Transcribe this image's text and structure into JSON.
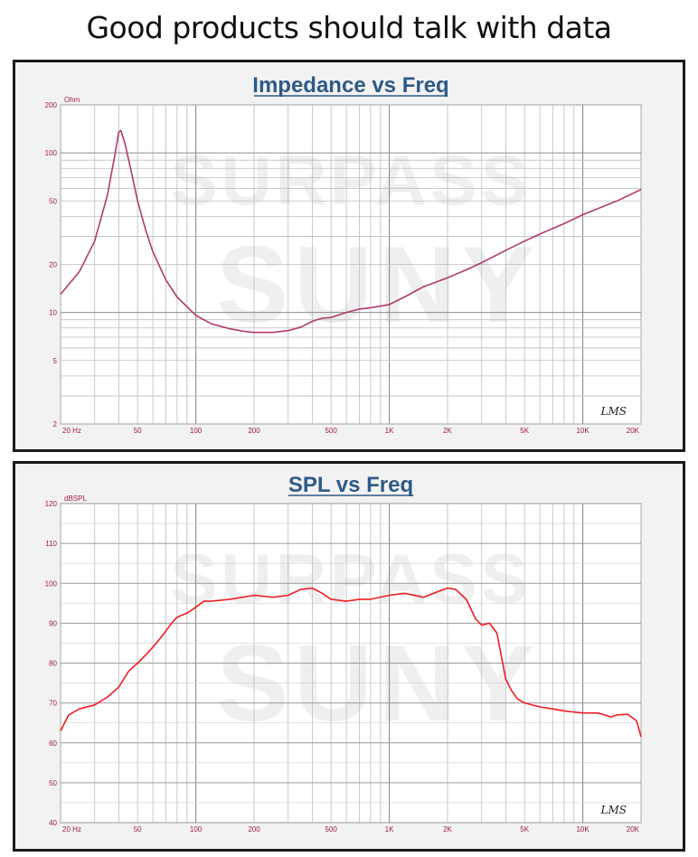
{
  "banner": {
    "title": "Good products should talk with data"
  },
  "watermark": {
    "line1": "SURPASS",
    "line2": "SUNY"
  },
  "chart_data": [
    {
      "type": "line",
      "title": "Impedance vs Freq",
      "ylabel": "Ohm",
      "xscale": "log",
      "yscale": "log",
      "xlim": [
        20,
        20000
      ],
      "ylim": [
        2,
        200
      ],
      "grid": true,
      "x_tick_labels": [
        {
          "value": 20,
          "label": "20 Hz"
        },
        {
          "value": 50,
          "label": "50"
        },
        {
          "value": 100,
          "label": "100"
        },
        {
          "value": 200,
          "label": "200"
        },
        {
          "value": 500,
          "label": "500"
        },
        {
          "value": 1000,
          "label": "1K"
        },
        {
          "value": 2000,
          "label": "2K"
        },
        {
          "value": 5000,
          "label": "5K"
        },
        {
          "value": 10000,
          "label": "10K"
        },
        {
          "value": 20000,
          "label": "20K"
        }
      ],
      "y_tick_labels": [
        {
          "value": 200,
          "label": "200"
        },
        {
          "value": 100,
          "label": "100"
        },
        {
          "value": 50,
          "label": "50"
        },
        {
          "value": 20,
          "label": "20"
        },
        {
          "value": 10,
          "label": "10"
        },
        {
          "value": 5,
          "label": "5"
        },
        {
          "value": 2,
          "label": "2"
        }
      ],
      "annotation": "LMS",
      "series": [
        {
          "color": "#b03a6e",
          "x": [
            20,
            25,
            30,
            35,
            38,
            40,
            41,
            43,
            46,
            50,
            55,
            60,
            70,
            80,
            100,
            120,
            150,
            180,
            200,
            250,
            300,
            350,
            400,
            450,
            500,
            600,
            700,
            800,
            1000,
            1200,
            1500,
            2000,
            2500,
            3000,
            4000,
            5000,
            6000,
            8000,
            10000,
            15000,
            20000
          ],
          "y": [
            13,
            18,
            28,
            55,
            95,
            135,
            138,
            115,
            80,
            50,
            33,
            24,
            16,
            12.5,
            9.6,
            8.5,
            7.9,
            7.6,
            7.5,
            7.5,
            7.7,
            8.1,
            8.8,
            9.2,
            9.3,
            10,
            10.5,
            10.7,
            11.2,
            12.5,
            14.5,
            16.5,
            18.5,
            20.5,
            24.5,
            28,
            31,
            36,
            41,
            50,
            59
          ]
        }
      ]
    },
    {
      "type": "line",
      "title": "SPL vs Freq",
      "ylabel": "dBSPL",
      "xscale": "log",
      "xlim": [
        20,
        20000
      ],
      "ylim": [
        40,
        120
      ],
      "grid": true,
      "x_tick_labels": [
        {
          "value": 20,
          "label": "20 Hz"
        },
        {
          "value": 50,
          "label": "50"
        },
        {
          "value": 100,
          "label": "100"
        },
        {
          "value": 200,
          "label": "200"
        },
        {
          "value": 500,
          "label": "500"
        },
        {
          "value": 1000,
          "label": "1K"
        },
        {
          "value": 2000,
          "label": "2K"
        },
        {
          "value": 5000,
          "label": "5K"
        },
        {
          "value": 10000,
          "label": "10K"
        },
        {
          "value": 20000,
          "label": "20K"
        }
      ],
      "y_tick_labels": [
        {
          "value": 120,
          "label": "120"
        },
        {
          "value": 110,
          "label": "110"
        },
        {
          "value": 100,
          "label": "100"
        },
        {
          "value": 90,
          "label": "90"
        },
        {
          "value": 80,
          "label": "80"
        },
        {
          "value": 70,
          "label": "70"
        },
        {
          "value": 60,
          "label": "60"
        },
        {
          "value": 50,
          "label": "50"
        },
        {
          "value": 40,
          "label": "40"
        }
      ],
      "annotation": "LMS",
      "series": [
        {
          "color": "#ee1d24",
          "x": [
            20,
            22,
            25,
            30,
            35,
            40,
            45,
            50,
            55,
            60,
            65,
            70,
            75,
            80,
            90,
            100,
            110,
            120,
            150,
            200,
            250,
            300,
            350,
            400,
            450,
            500,
            600,
            700,
            800,
            1000,
            1200,
            1500,
            1800,
            2000,
            2200,
            2500,
            2800,
            3000,
            3300,
            3600,
            4000,
            4300,
            4600,
            5000,
            6000,
            7000,
            8000,
            10000,
            12000,
            14000,
            15000,
            17000,
            19000,
            20000
          ],
          "y": [
            63,
            67,
            68.5,
            69.5,
            71.5,
            74,
            78,
            80,
            82,
            84,
            86,
            88,
            90,
            91.5,
            92.5,
            94,
            95.5,
            95.5,
            96,
            97,
            96.5,
            97,
            98.5,
            98.8,
            97.5,
            96,
            95.5,
            96,
            96,
            97,
            97.5,
            96.5,
            98,
            98.8,
            98.5,
            96,
            91,
            89.5,
            90,
            87.5,
            76,
            73,
            71,
            70,
            69,
            68.5,
            68,
            67.5,
            67.5,
            66.5,
            67,
            67.2,
            65.5,
            61.5
          ]
        }
      ]
    }
  ]
}
